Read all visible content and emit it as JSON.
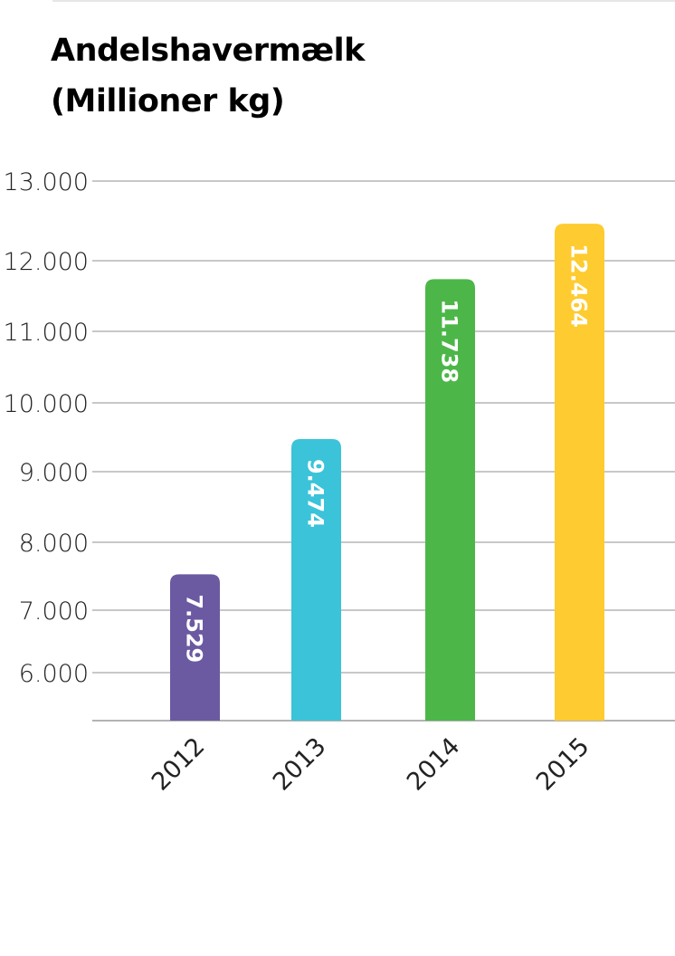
{
  "chart_data": {
    "type": "bar",
    "title": [
      "Andelshavermælk",
      "(Millioner kg)"
    ],
    "xlabel": "",
    "ylabel": "",
    "categories": [
      "2012",
      "2013",
      "2014",
      "2015"
    ],
    "values": [
      7529,
      9474,
      11738,
      12464
    ],
    "value_labels": [
      "7.529",
      "9.474",
      "11.738",
      "12.464"
    ],
    "colors": [
      "#6b5aa1",
      "#3bc3d9",
      "#4cb748",
      "#fecb30"
    ],
    "yticks": [
      6000,
      7000,
      8000,
      9000,
      10000,
      11000,
      12000,
      13000
    ],
    "ytick_labels": [
      "6.000",
      "7.000",
      "8.000",
      "9.000",
      "10.000",
      "11.000",
      "12.000",
      "13.000"
    ],
    "ylim": [
      5300,
      13000
    ],
    "grid": true
  }
}
